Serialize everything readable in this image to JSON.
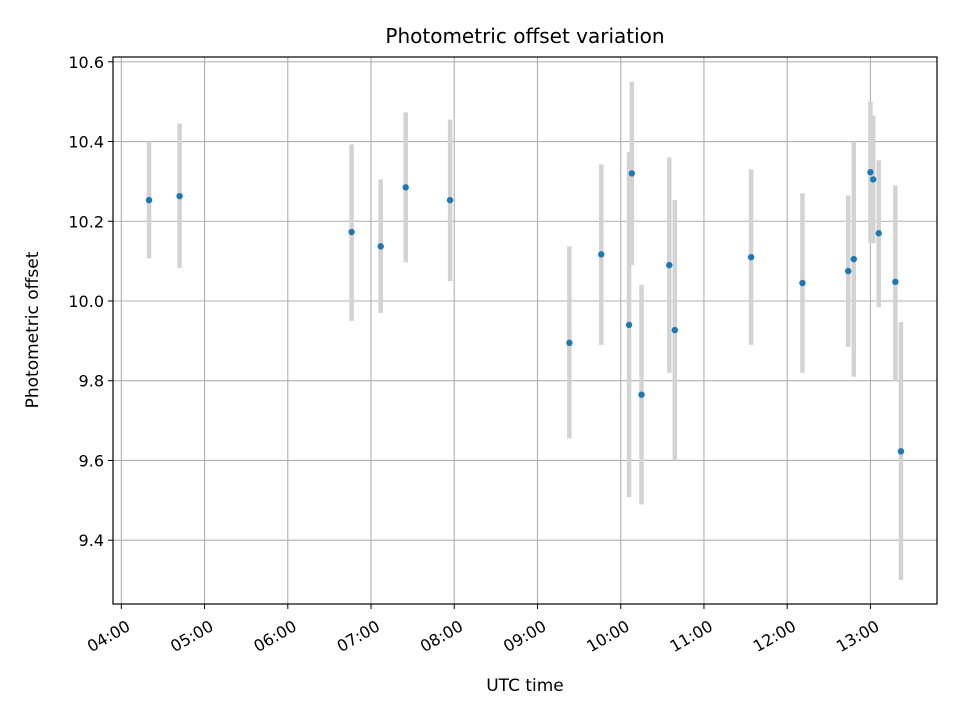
{
  "chart_data": {
    "type": "scatter",
    "title": "Photometric offset variation",
    "xlabel": "UTC time",
    "ylabel": "Photometric offset",
    "x_axis_kind": "time",
    "xlim": [
      "03:54",
      "13:48"
    ],
    "ylim": [
      9.24,
      10.612
    ],
    "x_ticks": [
      "04:00",
      "05:00",
      "06:00",
      "07:00",
      "08:00",
      "09:00",
      "10:00",
      "11:00",
      "12:00",
      "13:00"
    ],
    "y_ticks": [
      9.4,
      9.6,
      9.8,
      10.0,
      10.2,
      10.4,
      10.6
    ],
    "y_tick_labels": [
      "9.4",
      "9.6",
      "9.8",
      "10.0",
      "10.2",
      "10.4",
      "10.6"
    ],
    "grid": true,
    "point_color": "#1f77b4",
    "errorbar_color": "#d3d3d3",
    "points": [
      {
        "x": "04:20",
        "y": 10.253,
        "ylow": 10.107,
        "yhigh": 10.4
      },
      {
        "x": "04:42",
        "y": 10.263,
        "ylow": 10.083,
        "yhigh": 10.445
      },
      {
        "x": "06:46",
        "y": 10.173,
        "ylow": 9.95,
        "yhigh": 10.393
      },
      {
        "x": "07:07",
        "y": 10.137,
        "ylow": 9.97,
        "yhigh": 10.305
      },
      {
        "x": "07:25",
        "y": 10.285,
        "ylow": 10.097,
        "yhigh": 10.473
      },
      {
        "x": "07:57",
        "y": 10.253,
        "ylow": 10.05,
        "yhigh": 10.455
      },
      {
        "x": "09:23",
        "y": 9.895,
        "ylow": 9.655,
        "yhigh": 10.137
      },
      {
        "x": "09:46",
        "y": 10.117,
        "ylow": 9.89,
        "yhigh": 10.343
      },
      {
        "x": "10:06",
        "y": 9.94,
        "ylow": 9.508,
        "yhigh": 10.373
      },
      {
        "x": "10:08",
        "y": 10.32,
        "ylow": 10.09,
        "yhigh": 10.55
      },
      {
        "x": "10:15",
        "y": 9.765,
        "ylow": 9.49,
        "yhigh": 10.04
      },
      {
        "x": "10:35",
        "y": 10.09,
        "ylow": 9.82,
        "yhigh": 10.36
      },
      {
        "x": "10:39",
        "y": 9.927,
        "ylow": 9.6,
        "yhigh": 10.253
      },
      {
        "x": "11:34",
        "y": 10.11,
        "ylow": 9.89,
        "yhigh": 10.33
      },
      {
        "x": "12:11",
        "y": 10.045,
        "ylow": 9.82,
        "yhigh": 10.27
      },
      {
        "x": "12:44",
        "y": 10.075,
        "ylow": 9.885,
        "yhigh": 10.265
      },
      {
        "x": "12:48",
        "y": 10.105,
        "ylow": 9.81,
        "yhigh": 10.4
      },
      {
        "x": "13:00",
        "y": 10.323,
        "ylow": 10.145,
        "yhigh": 10.5
      },
      {
        "x": "13:02",
        "y": 10.305,
        "ylow": 10.145,
        "yhigh": 10.465
      },
      {
        "x": "13:06",
        "y": 10.17,
        "ylow": 9.985,
        "yhigh": 10.353
      },
      {
        "x": "13:18",
        "y": 10.048,
        "ylow": 9.8,
        "yhigh": 10.29
      },
      {
        "x": "13:22",
        "y": 9.623,
        "ylow": 9.3,
        "yhigh": 9.947
      }
    ]
  }
}
